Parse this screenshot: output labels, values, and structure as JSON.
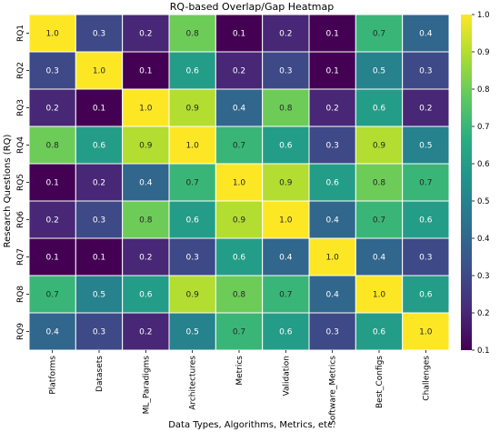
{
  "chart_data": {
    "type": "heatmap",
    "title": "RQ-based Overlap/Gap Heatmap",
    "xlabel": "Data Types, Algorithms, Metrics, etc.",
    "ylabel": "Research Questions (RQ)",
    "columns": [
      "Platforms",
      "Datasets",
      "ML_Paradigms",
      "Architectures",
      "Metrics",
      "Validation",
      "Software_Metrics",
      "Best_Configs",
      "Challenges"
    ],
    "rows": [
      "RQ1",
      "RQ2",
      "RQ3",
      "RQ4",
      "RQ5",
      "RQ6",
      "RQ7",
      "RQ8",
      "RQ9"
    ],
    "values": [
      [
        1.0,
        0.3,
        0.2,
        0.8,
        0.1,
        0.2,
        0.1,
        0.7,
        0.4
      ],
      [
        0.3,
        1.0,
        0.1,
        0.6,
        0.2,
        0.3,
        0.1,
        0.5,
        0.3
      ],
      [
        0.2,
        0.1,
        1.0,
        0.9,
        0.4,
        0.8,
        0.2,
        0.6,
        0.2
      ],
      [
        0.8,
        0.6,
        0.9,
        1.0,
        0.7,
        0.6,
        0.3,
        0.9,
        0.5
      ],
      [
        0.1,
        0.2,
        0.4,
        0.7,
        1.0,
        0.9,
        0.6,
        0.8,
        0.7
      ],
      [
        0.2,
        0.3,
        0.8,
        0.6,
        0.9,
        1.0,
        0.4,
        0.7,
        0.6
      ],
      [
        0.1,
        0.1,
        0.2,
        0.3,
        0.6,
        0.4,
        1.0,
        0.4,
        0.3
      ],
      [
        0.7,
        0.5,
        0.6,
        0.9,
        0.8,
        0.7,
        0.4,
        1.0,
        0.6
      ],
      [
        0.4,
        0.3,
        0.2,
        0.5,
        0.7,
        0.6,
        0.3,
        0.6,
        1.0
      ]
    ],
    "colormap": "viridis",
    "vmin": 0.1,
    "vmax": 1.0,
    "colorbar_ticks": [
      0.1,
      0.2,
      0.3,
      0.4,
      0.5,
      0.6,
      0.7,
      0.8,
      0.9,
      1.0
    ],
    "grid_color": "#ffffff"
  }
}
